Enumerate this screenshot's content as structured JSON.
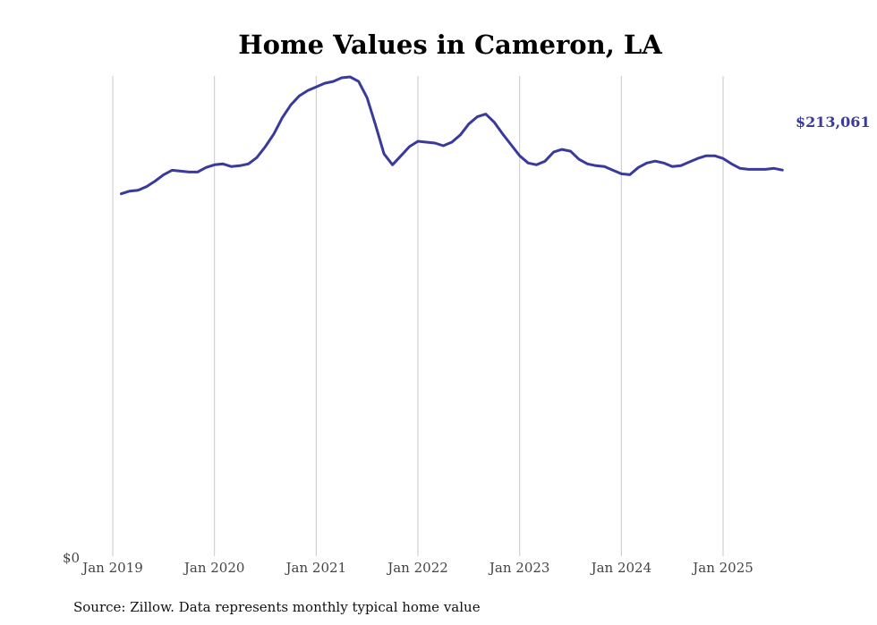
{
  "chart_data": {
    "type": "line",
    "title": "Home Values in Cameron, LA",
    "xlabel": "",
    "ylabel": "",
    "x_ticks": [
      "Jan 2019",
      "Jan 2020",
      "Jan 2021",
      "Jan 2022",
      "Jan 2023",
      "Jan 2024",
      "Jan 2025"
    ],
    "y_tick_labels": [
      "$0"
    ],
    "ylim": [
      0,
      265000
    ],
    "grid": "vertical",
    "source": "Source: Zillow. Data represents monthly typical home value",
    "end_label": "$213,061",
    "series": [
      {
        "color": "#3a3a9c",
        "x": [
          "2019-02",
          "2019-03",
          "2019-04",
          "2019-05",
          "2019-06",
          "2019-07",
          "2019-08",
          "2019-09",
          "2019-10",
          "2019-11",
          "2019-12",
          "2020-01",
          "2020-02",
          "2020-03",
          "2020-04",
          "2020-05",
          "2020-06",
          "2020-07",
          "2020-08",
          "2020-09",
          "2020-10",
          "2020-11",
          "2020-12",
          "2021-01",
          "2021-02",
          "2021-03",
          "2021-04",
          "2021-05",
          "2021-06",
          "2021-07",
          "2021-08",
          "2021-09",
          "2021-10",
          "2021-11",
          "2021-12",
          "2022-01",
          "2022-02",
          "2022-03",
          "2022-04",
          "2022-05",
          "2022-06",
          "2022-07",
          "2022-08",
          "2022-09",
          "2022-10",
          "2022-11",
          "2022-12",
          "2023-01",
          "2023-02",
          "2023-03",
          "2023-04",
          "2023-05",
          "2023-06",
          "2023-07",
          "2023-08",
          "2023-09",
          "2023-10",
          "2023-11",
          "2023-12",
          "2024-01",
          "2024-02",
          "2024-03",
          "2024-04",
          "2024-05",
          "2024-06",
          "2024-07",
          "2024-08",
          "2024-09",
          "2024-10",
          "2024-11",
          "2024-12",
          "2025-01",
          "2025-02",
          "2025-03",
          "2025-04",
          "2025-05",
          "2025-06",
          "2025-07",
          "2025-08"
        ],
        "values": [
          200000,
          201500,
          202000,
          204000,
          207000,
          210500,
          213000,
          212500,
          212000,
          212000,
          214500,
          216000,
          216500,
          215000,
          215500,
          216500,
          220000,
          226000,
          233000,
          242000,
          249000,
          254000,
          257000,
          259000,
          261000,
          262000,
          264000,
          264500,
          262000,
          253000,
          238000,
          222000,
          216000,
          221000,
          226000,
          229000,
          228500,
          228000,
          226500,
          228500,
          232500,
          238500,
          242500,
          244000,
          239500,
          233000,
          227000,
          221000,
          217000,
          216000,
          218000,
          223000,
          224500,
          223500,
          219000,
          216500,
          215500,
          215000,
          213000,
          211000,
          210500,
          214500,
          217000,
          218000,
          217000,
          215000,
          215500,
          217500,
          219500,
          221000,
          221000,
          219500,
          216500,
          214000,
          213500,
          213500,
          213500,
          214000,
          213061
        ]
      }
    ]
  }
}
